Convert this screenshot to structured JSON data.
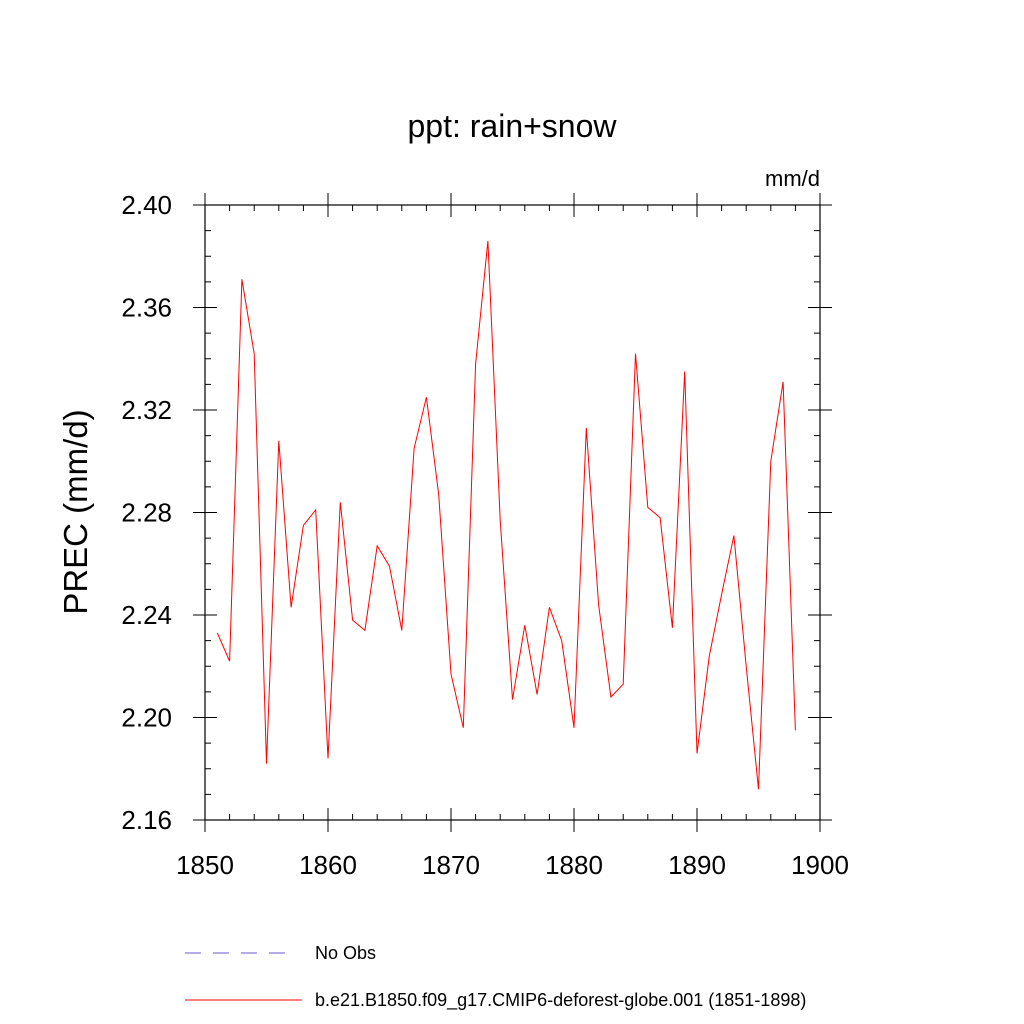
{
  "chart_data": {
    "type": "line",
    "title": "ppt: rain+snow",
    "units_label": "mm/d",
    "ylabel": "PREC  (mm/d)",
    "xlabel": "",
    "xlim": [
      1850,
      1900
    ],
    "ylim": [
      2.16,
      2.4
    ],
    "xticks": [
      1850,
      1860,
      1870,
      1880,
      1890,
      1900
    ],
    "xtick_labels": [
      "1850",
      "1860",
      "1870",
      "1880",
      "1890",
      "1900"
    ],
    "yticks": [
      2.16,
      2.2,
      2.24,
      2.28,
      2.32,
      2.36,
      2.4
    ],
    "ytick_labels": [
      "2.16",
      "2.20",
      "2.24",
      "2.28",
      "2.32",
      "2.36",
      "2.40"
    ],
    "grid": false,
    "legend_position": "bottom",
    "series": [
      {
        "name": "b.e21.B1850.f09_g17.CMIP6-deforest-globe.001 (1851-1898)",
        "color": "#ff0000",
        "style": "solid",
        "x": [
          1851,
          1852,
          1853,
          1854,
          1855,
          1856,
          1857,
          1858,
          1859,
          1860,
          1861,
          1862,
          1863,
          1864,
          1865,
          1866,
          1867,
          1868,
          1869,
          1870,
          1871,
          1872,
          1873,
          1874,
          1875,
          1876,
          1877,
          1878,
          1879,
          1880,
          1881,
          1882,
          1883,
          1884,
          1885,
          1886,
          1887,
          1888,
          1889,
          1890,
          1891,
          1892,
          1893,
          1894,
          1895,
          1896,
          1897,
          1898
        ],
        "y": [
          2.233,
          2.222,
          2.371,
          2.342,
          2.182,
          2.308,
          2.243,
          2.275,
          2.281,
          2.184,
          2.284,
          2.238,
          2.234,
          2.267,
          2.259,
          2.234,
          2.305,
          2.325,
          2.287,
          2.217,
          2.196,
          2.338,
          2.386,
          2.277,
          2.207,
          2.236,
          2.209,
          2.243,
          2.23,
          2.196,
          2.313,
          2.244,
          2.208,
          2.213,
          2.342,
          2.282,
          2.278,
          2.235,
          2.335,
          2.186,
          2.224,
          2.248,
          2.271,
          2.22,
          2.172,
          2.3,
          2.331,
          2.195
        ]
      },
      {
        "name": "No Obs",
        "color": "#6a5acd",
        "style": "dashed",
        "x": [],
        "y": []
      }
    ]
  }
}
